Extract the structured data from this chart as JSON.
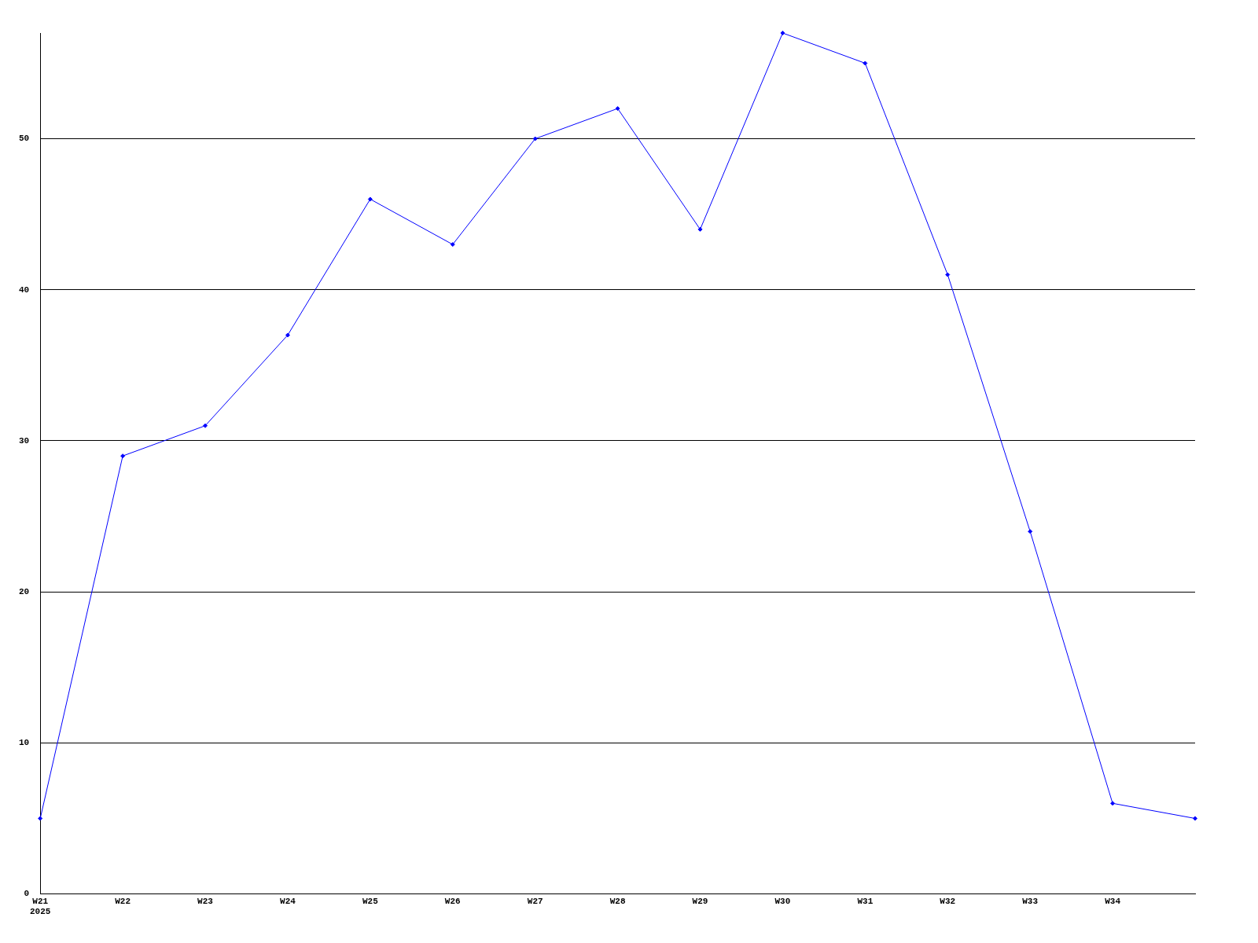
{
  "chart_data": {
    "type": "line",
    "categories": [
      "W21\n2025",
      "W22",
      "W23",
      "W24",
      "W25",
      "W26",
      "W27",
      "W28",
      "W29",
      "W30",
      "W31",
      "W32",
      "W33",
      "W34",
      null
    ],
    "series": [
      {
        "color": "#0000ff",
        "values": [
          5,
          29,
          31,
          37,
          46,
          43,
          50,
          52,
          44,
          57,
          55,
          41,
          24,
          6,
          5
        ]
      }
    ],
    "ylim": [
      0,
      57
    ],
    "yticks": [
      0,
      10,
      20,
      30,
      40,
      50
    ],
    "grid": "y",
    "legend": false,
    "marker": "diamond",
    "line_style": "solid"
  }
}
